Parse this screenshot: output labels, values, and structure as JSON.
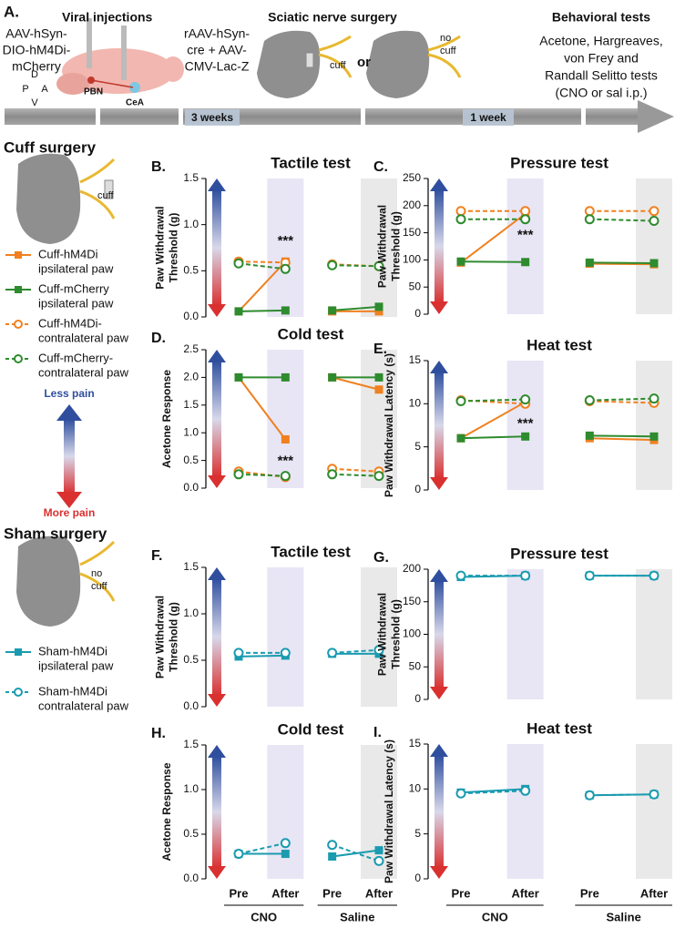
{
  "panel_a": {
    "label": "A.",
    "injections_title": "Viral injections",
    "vector_left": [
      "AAV-hSyn-",
      "DIO-hM4Di-",
      "mCherry"
    ],
    "vector_right": [
      "rAAV-hSyn-",
      "cre + AAV-",
      "CMV-Lac-Z"
    ],
    "region_1": "PBN",
    "region_2": "CeA",
    "compass": [
      "D",
      "P",
      "A",
      "V"
    ],
    "surgery_title": "Sciatic nerve surgery",
    "cuff": "cuff",
    "or": "or",
    "no_cuff": [
      "no",
      "cuff"
    ],
    "tests_title": "Behavioral tests",
    "tests": [
      "Acetone, Hargreaves,",
      "von Frey and",
      "Randall Selitto tests",
      "(CNO or sal i.p.)"
    ],
    "interval_1": "3 weeks",
    "interval_2": "1 week"
  },
  "legend_cuff": {
    "title": "Cuff surgery",
    "cuff": "cuff",
    "items": [
      {
        "label": [
          "Cuff-hM4Di",
          "ipsilateral paw"
        ],
        "color": "#f08020",
        "marker": "square",
        "dashed": false
      },
      {
        "label": [
          "Cuff-mCherry",
          "ipsilateral paw"
        ],
        "color": "#2e8b2e",
        "marker": "square",
        "dashed": false
      },
      {
        "label": [
          "Cuff-hM4Di-",
          "contralateral paw"
        ],
        "color": "#f08020",
        "marker": "circle",
        "dashed": true
      },
      {
        "label": [
          "Cuff-mCherry-",
          "contralateral paw"
        ],
        "color": "#2e8b2e",
        "marker": "circle",
        "dashed": true
      }
    ]
  },
  "pain_scale": {
    "top": "Less pain",
    "bottom": "More pain"
  },
  "legend_sham": {
    "title": "Sham surgery",
    "no_cuff": [
      "no",
      "cuff"
    ],
    "items": [
      {
        "label": [
          "Sham-hM4Di",
          "ipsilateral paw"
        ],
        "color": "#1a9bb0",
        "marker": "square",
        "dashed": false
      },
      {
        "label": [
          "Sham-hM4Di",
          "contralateral paw"
        ],
        "color": "#1a9bb0",
        "marker": "circle",
        "dashed": true
      }
    ]
  },
  "chart_data": [
    {
      "type": "line",
      "label": "B.",
      "title": "Tactile test",
      "y_label": [
        "Paw Withdrawal",
        "Threshold (g)"
      ],
      "ylim": [
        0,
        1.5
      ],
      "yticks": [
        {
          "value": 0,
          "label": "0.0"
        },
        {
          "value": 0.5,
          "label": "0.5"
        },
        {
          "value": 1,
          "label": "1.0"
        },
        {
          "value": 1.5,
          "label": "1.5"
        }
      ],
      "annotation": "***",
      "series": [
        {
          "color": "#f08020",
          "marker": "square",
          "dashed": false,
          "values": [
            0.06,
            0.6,
            0.06,
            0.06
          ]
        },
        {
          "color": "#2e8b2e",
          "marker": "square",
          "dashed": false,
          "values": [
            0.06,
            0.07,
            0.07,
            0.11
          ]
        },
        {
          "color": "#f08020",
          "marker": "circle",
          "dashed": true,
          "values": [
            0.6,
            0.59,
            0.57,
            0.55
          ]
        },
        {
          "color": "#2e8b2e",
          "marker": "circle",
          "dashed": true,
          "values": [
            0.58,
            0.52,
            0.56,
            0.55
          ]
        }
      ]
    },
    {
      "type": "line",
      "label": "C.",
      "title": "Pressure test",
      "y_label": [
        "Paw Withdrawal",
        "Threshold (g)"
      ],
      "ylim": [
        0,
        250
      ],
      "yticks": [
        0,
        50,
        100,
        150,
        200,
        250
      ],
      "annotation": "***",
      "series": [
        {
          "color": "#f08020",
          "marker": "square",
          "dashed": false,
          "values": [
            95,
            185,
            93,
            92
          ]
        },
        {
          "color": "#2e8b2e",
          "marker": "square",
          "dashed": false,
          "values": [
            97,
            96,
            95,
            94
          ]
        },
        {
          "color": "#f08020",
          "marker": "circle",
          "dashed": true,
          "values": [
            190,
            190,
            190,
            190
          ]
        },
        {
          "color": "#2e8b2e",
          "marker": "circle",
          "dashed": true,
          "values": [
            175,
            175,
            175,
            172
          ]
        }
      ]
    },
    {
      "type": "line",
      "label": "D.",
      "title": "Cold test",
      "y_label": [
        "Acetone Response"
      ],
      "ylim": [
        0,
        2.5
      ],
      "yticks": [
        {
          "value": 0,
          "label": "0.0"
        },
        {
          "value": 0.5,
          "label": "0.5"
        },
        {
          "value": 1,
          "label": "1.0"
        },
        {
          "value": 1.5,
          "label": "1.5"
        },
        {
          "value": 2,
          "label": "2.0"
        },
        {
          "value": 2.5,
          "label": "2.5"
        }
      ],
      "annotation": "***",
      "series": [
        {
          "color": "#f08020",
          "marker": "square",
          "dashed": false,
          "values": [
            2.0,
            0.88,
            2.0,
            1.78
          ]
        },
        {
          "color": "#2e8b2e",
          "marker": "square",
          "dashed": false,
          "values": [
            2.0,
            2.0,
            2.0,
            2.0
          ]
        },
        {
          "color": "#f08020",
          "marker": "circle",
          "dashed": true,
          "values": [
            0.3,
            0.2,
            0.35,
            0.3
          ]
        },
        {
          "color": "#2e8b2e",
          "marker": "circle",
          "dashed": true,
          "values": [
            0.25,
            0.22,
            0.25,
            0.22
          ]
        }
      ]
    },
    {
      "type": "line",
      "label": "E.",
      "title": "Heat test",
      "y_label": [
        "Paw Withdrawal Latency (s)"
      ],
      "ylim": [
        0,
        15
      ],
      "yticks": [
        0,
        5,
        10,
        15
      ],
      "annotation": "***",
      "series": [
        {
          "color": "#f08020",
          "marker": "square",
          "dashed": false,
          "values": [
            6.0,
            10.2,
            6.0,
            5.8
          ]
        },
        {
          "color": "#2e8b2e",
          "marker": "square",
          "dashed": false,
          "values": [
            6.0,
            6.2,
            6.3,
            6.2
          ]
        },
        {
          "color": "#f08020",
          "marker": "circle",
          "dashed": true,
          "values": [
            10.4,
            10.0,
            10.3,
            10.1
          ]
        },
        {
          "color": "#2e8b2e",
          "marker": "circle",
          "dashed": true,
          "values": [
            10.3,
            10.5,
            10.4,
            10.6
          ]
        }
      ]
    },
    {
      "type": "line",
      "label": "F.",
      "title": "Tactile test",
      "y_label": [
        "Paw Withdrawal",
        "Threshold (g)"
      ],
      "ylim": [
        0,
        1.5
      ],
      "yticks": [
        {
          "value": 0,
          "label": "0.0"
        },
        {
          "value": 0.5,
          "label": "0.5"
        },
        {
          "value": 1,
          "label": "1.0"
        },
        {
          "value": 1.5,
          "label": "1.5"
        }
      ],
      "series": [
        {
          "color": "#1a9bb0",
          "marker": "square",
          "dashed": false,
          "values": [
            0.54,
            0.55,
            0.57,
            0.57
          ]
        },
        {
          "color": "#1a9bb0",
          "marker": "circle",
          "dashed": true,
          "values": [
            0.58,
            0.58,
            0.58,
            0.61
          ]
        }
      ]
    },
    {
      "type": "line",
      "label": "G.",
      "title": "Pressure test",
      "y_label": [
        "Paw Withdrawal",
        "Threshold (g)"
      ],
      "ylim": [
        0,
        200
      ],
      "yticks": [
        0,
        50,
        100,
        150,
        200
      ],
      "series": [
        {
          "color": "#1a9bb0",
          "marker": "square",
          "dashed": false,
          "values": [
            188,
            190,
            190,
            190
          ]
        },
        {
          "color": "#1a9bb0",
          "marker": "circle",
          "dashed": true,
          "values": [
            190,
            190,
            190,
            190
          ]
        }
      ]
    },
    {
      "type": "line",
      "label": "H.",
      "title": "Cold test",
      "y_label": [
        "Acetone Response"
      ],
      "ylim": [
        0,
        1.5
      ],
      "yticks": [
        {
          "value": 0,
          "label": "0.0"
        },
        {
          "value": 0.5,
          "label": "0.5"
        },
        {
          "value": 1,
          "label": "1.0"
        },
        {
          "value": 1.5,
          "label": "1.5"
        }
      ],
      "categories": [
        "Pre",
        "After",
        "Pre",
        "After"
      ],
      "groups": [
        "CNO",
        "Saline"
      ],
      "series": [
        {
          "color": "#1a9bb0",
          "marker": "square",
          "dashed": false,
          "values": [
            0.28,
            0.28,
            0.25,
            0.32
          ]
        },
        {
          "color": "#1a9bb0",
          "marker": "circle",
          "dashed": true,
          "values": [
            0.28,
            0.4,
            0.38,
            0.2
          ]
        }
      ]
    },
    {
      "type": "line",
      "label": "I.",
      "title": "Heat test",
      "y_label": [
        "Paw Withdrawal Latency (s)"
      ],
      "ylim": [
        0,
        15
      ],
      "yticks": [
        0,
        5,
        10,
        15
      ],
      "categories": [
        "Pre",
        "After",
        "Pre",
        "After"
      ],
      "groups": [
        "CNO",
        "Saline"
      ],
      "series": [
        {
          "color": "#1a9bb0",
          "marker": "square",
          "dashed": false,
          "values": [
            9.6,
            10.0,
            9.3,
            9.4
          ]
        },
        {
          "color": "#1a9bb0",
          "marker": "circle",
          "dashed": true,
          "values": [
            9.5,
            9.8,
            9.3,
            9.4
          ]
        }
      ]
    }
  ]
}
